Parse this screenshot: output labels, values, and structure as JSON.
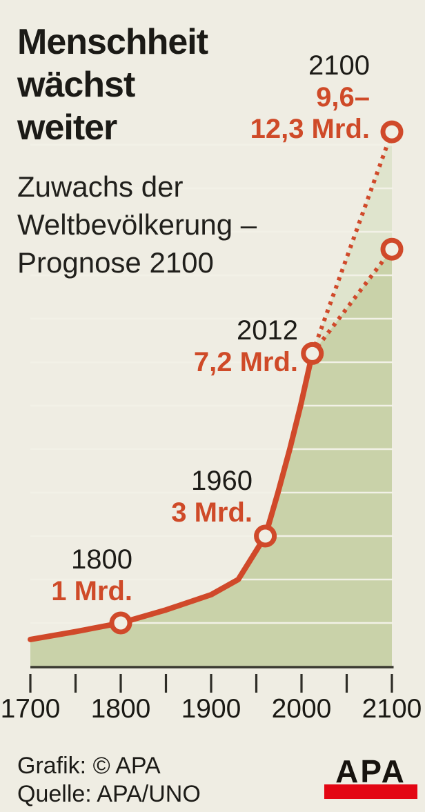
{
  "header": {
    "title_lines": [
      "Menschheit",
      "wächst",
      "weiter"
    ],
    "subtitle_lines": [
      "Zuwachs der",
      "Weltbevölkerung –",
      "Prognose 2100"
    ]
  },
  "footer": {
    "credit": "Grafik: © APA",
    "source": "Quelle: APA/UNO",
    "logo_text": "APA"
  },
  "chart_data": {
    "type": "area",
    "title": "Menschheit wächst weiter",
    "subtitle": "Zuwachs der Weltbevölkerung – Prognose 2100",
    "unit": "Mrd.",
    "xlim": [
      1700,
      2100
    ],
    "ylim": [
      0,
      13
    ],
    "grid_step": 1,
    "grid": true,
    "legend": false,
    "xticks": [
      1700,
      1750,
      1800,
      1850,
      1900,
      1950,
      2000,
      2050,
      2100
    ],
    "xtick_labels": [
      "1700",
      "1800",
      "1900",
      "2000",
      "2100"
    ],
    "xtick_label_years": [
      1700,
      1800,
      1900,
      2000,
      2100
    ],
    "series": [
      {
        "name": "Weltbevölkerung historisch",
        "style": "solid",
        "points": [
          [
            1700,
            0.62
          ],
          [
            1750,
            0.8
          ],
          [
            1800,
            1.0
          ],
          [
            1850,
            1.3
          ],
          [
            1900,
            1.65
          ],
          [
            1930,
            2.0
          ],
          [
            1960,
            3.0
          ],
          [
            1974,
            4.0
          ],
          [
            1987,
            5.0
          ],
          [
            1999,
            6.0
          ],
          [
            2012,
            7.2
          ]
        ]
      },
      {
        "name": "Prognose niedrig",
        "style": "dotted",
        "points": [
          [
            2012,
            7.2
          ],
          [
            2100,
            9.6
          ]
        ]
      },
      {
        "name": "Prognose hoch",
        "style": "dotted",
        "points": [
          [
            2012,
            7.2
          ],
          [
            2100,
            12.3
          ]
        ]
      }
    ],
    "markers": [
      [
        1800,
        1.0
      ],
      [
        1960,
        3.0
      ],
      [
        2012,
        7.2
      ],
      [
        2100,
        9.6
      ],
      [
        2100,
        12.3
      ]
    ],
    "annotations": [
      {
        "year": "1800",
        "values": [
          "1 Mrd."
        ]
      },
      {
        "year": "1960",
        "values": [
          "3 Mrd."
        ]
      },
      {
        "year": "2012",
        "values": [
          "7,2 Mrd."
        ]
      },
      {
        "year": "2100",
        "values": [
          "9,6–",
          "12,3 Mrd."
        ]
      }
    ],
    "colors": {
      "line": "#d0492a",
      "value_text": "#cf4a28",
      "area": "#c9d2a9",
      "projection_band": "#dfe4cd",
      "grid": "#f2f1e7",
      "axis": "#3a3a31",
      "background": "#efede3",
      "marker_fill": "#f0eee4",
      "logo_red": "#e30613"
    }
  }
}
